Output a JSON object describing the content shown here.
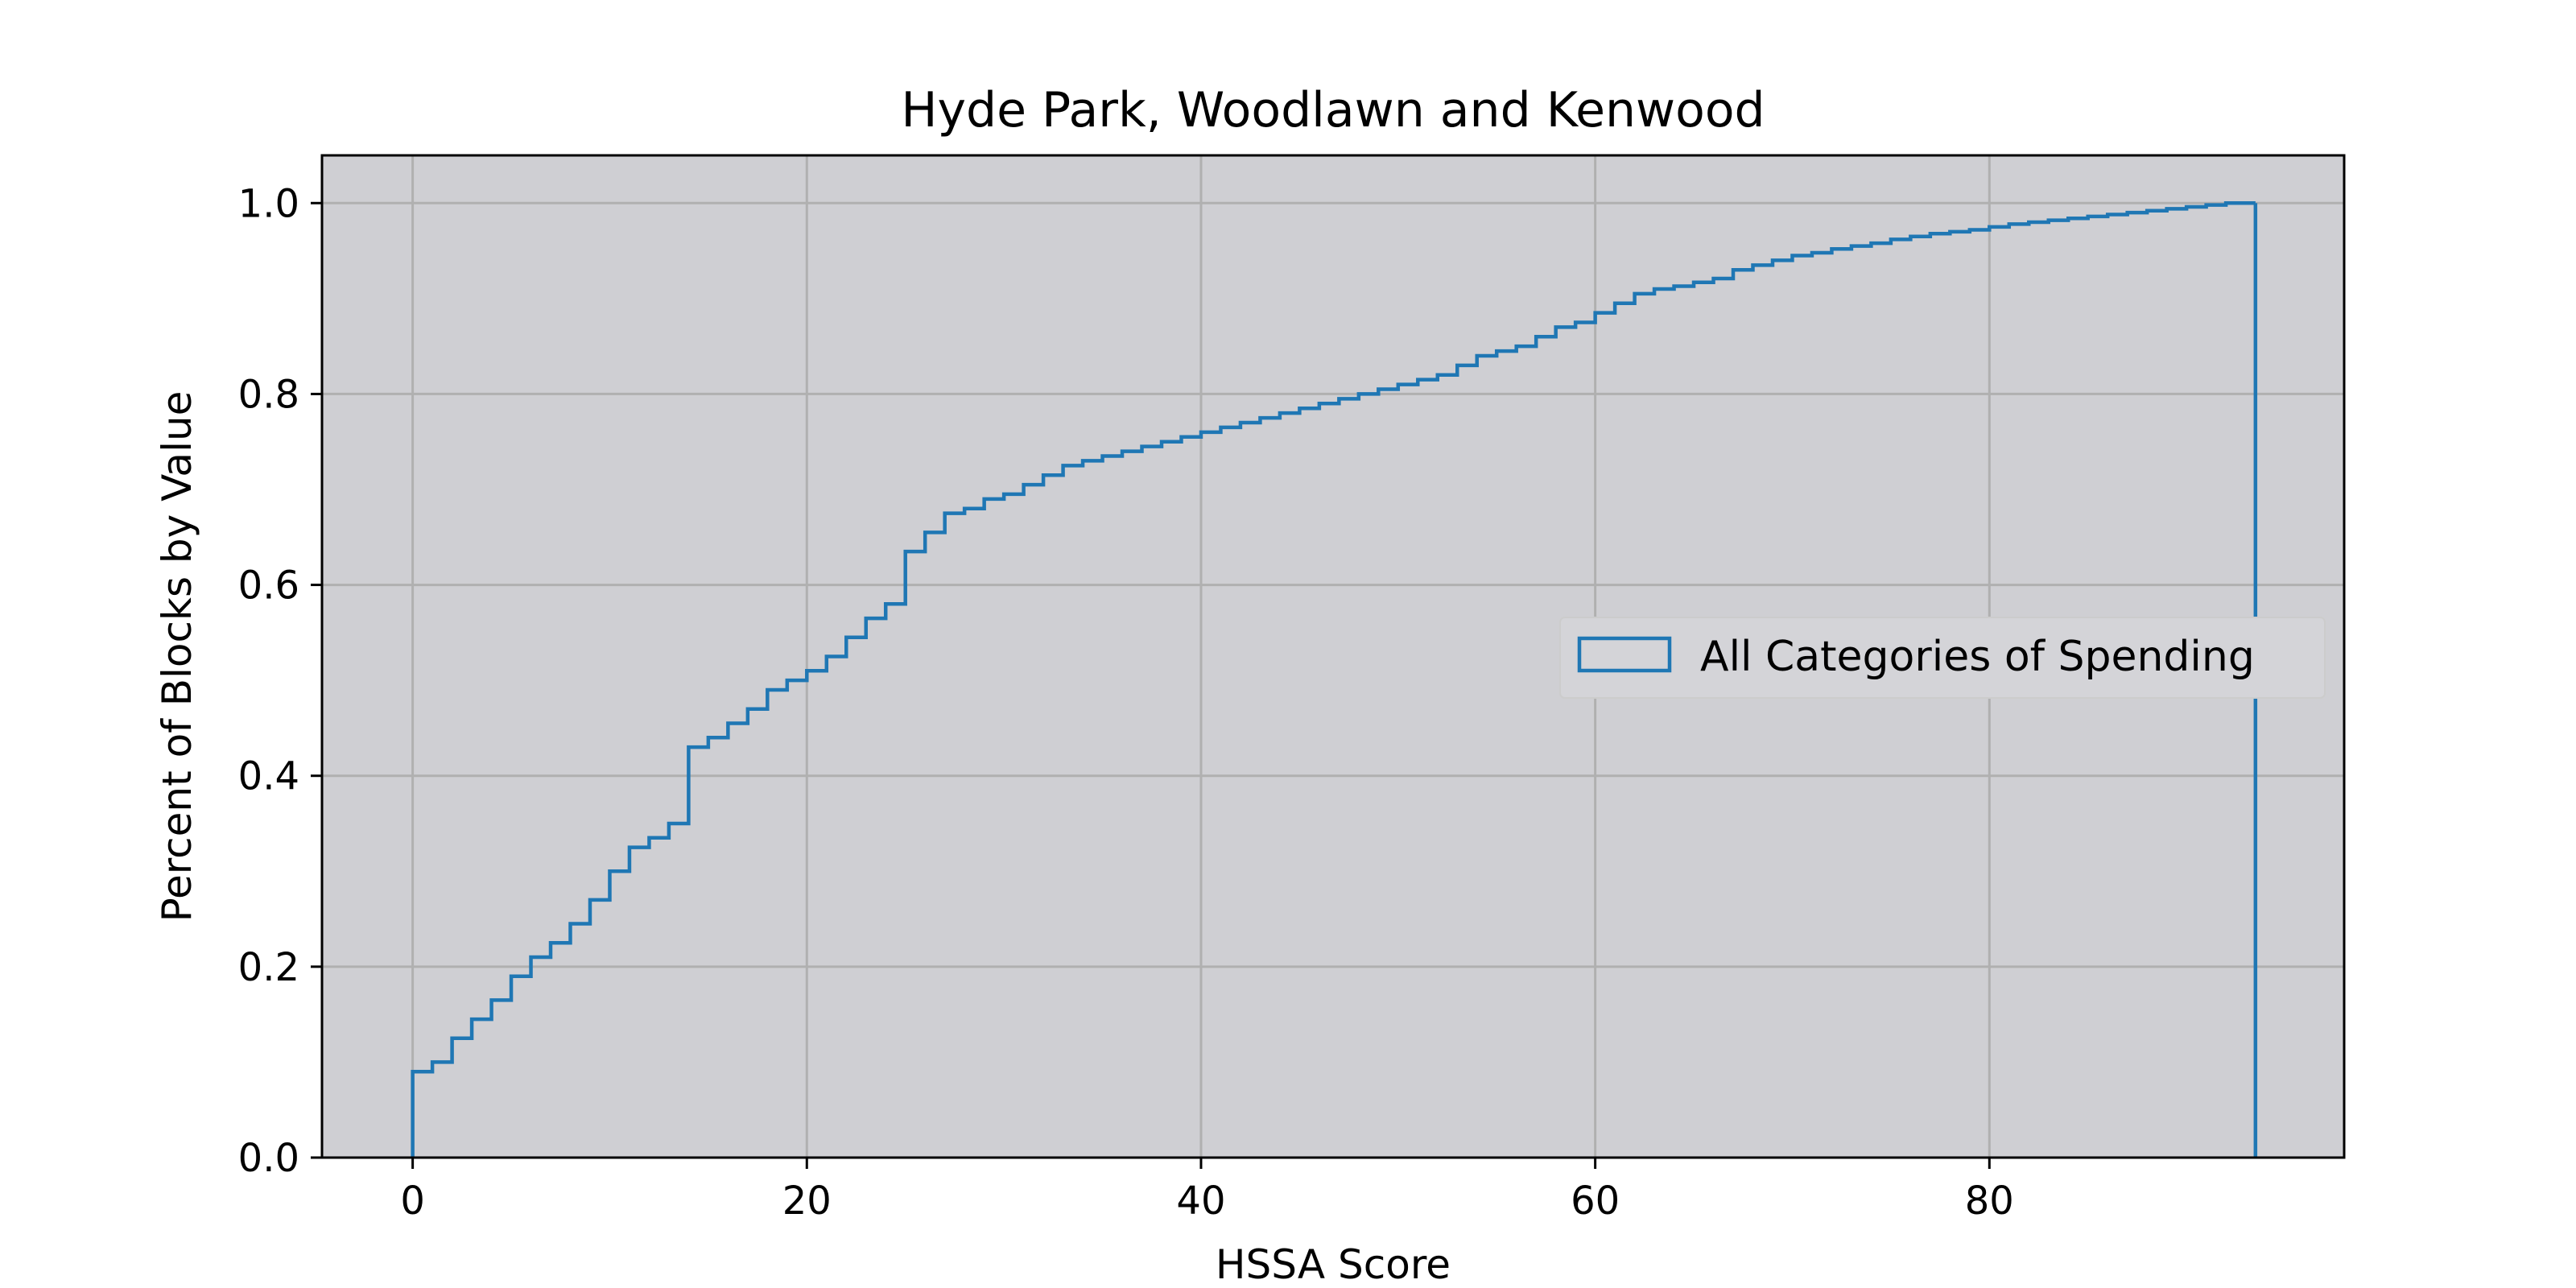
{
  "chart_data": {
    "type": "step",
    "title": "Hyde Park, Woodlawn and Kenwood",
    "xlabel": "HSSA Score",
    "ylabel": "Percent of Blocks by Value",
    "xlim": [
      -4.6,
      98.0
    ],
    "ylim": [
      0.0,
      1.05
    ],
    "xticks": [
      0,
      20,
      40,
      60,
      80
    ],
    "xtick_labels": [
      "0",
      "20",
      "40",
      "60",
      "80"
    ],
    "yticks": [
      0.0,
      0.2,
      0.4,
      0.6,
      0.8,
      1.0
    ],
    "ytick_labels": [
      "0.0",
      "0.2",
      "0.4",
      "0.6",
      "0.8",
      "1.0"
    ],
    "grid": true,
    "background": "#cfcfd3",
    "legend": {
      "placement": "center-right"
    },
    "series": [
      {
        "name": "All Categories of Spending",
        "color": "#1f77b4",
        "histtype": "step",
        "cumulative": true,
        "x_max": 93.5,
        "x": [
          0,
          1,
          2,
          3,
          4,
          5,
          6,
          7,
          8,
          9,
          10,
          11,
          12,
          13,
          14,
          15,
          16,
          17,
          18,
          19,
          20,
          21,
          22,
          23,
          24,
          25,
          26,
          27,
          28,
          29,
          30,
          31,
          32,
          33,
          34,
          35,
          36,
          37,
          38,
          39,
          40,
          41,
          42,
          43,
          44,
          45,
          46,
          47,
          48,
          49,
          50,
          51,
          52,
          53,
          54,
          55,
          56,
          57,
          58,
          59,
          60,
          61,
          62,
          63,
          64,
          65,
          66,
          67,
          68,
          69,
          70,
          71,
          72,
          73,
          74,
          75,
          76,
          77,
          78,
          79,
          80,
          81,
          82,
          83,
          84,
          85,
          86,
          87,
          88,
          89,
          90,
          91,
          92
        ],
        "y": [
          0.09,
          0.1,
          0.125,
          0.145,
          0.165,
          0.19,
          0.21,
          0.225,
          0.245,
          0.27,
          0.3,
          0.325,
          0.335,
          0.35,
          0.43,
          0.44,
          0.455,
          0.47,
          0.49,
          0.5,
          0.51,
          0.525,
          0.545,
          0.565,
          0.58,
          0.635,
          0.655,
          0.675,
          0.68,
          0.69,
          0.695,
          0.705,
          0.715,
          0.725,
          0.73,
          0.735,
          0.74,
          0.745,
          0.75,
          0.755,
          0.76,
          0.765,
          0.77,
          0.775,
          0.78,
          0.785,
          0.79,
          0.795,
          0.8,
          0.805,
          0.81,
          0.815,
          0.82,
          0.83,
          0.84,
          0.845,
          0.85,
          0.86,
          0.87,
          0.875,
          0.885,
          0.895,
          0.905,
          0.91,
          0.913,
          0.917,
          0.921,
          0.93,
          0.935,
          0.94,
          0.945,
          0.948,
          0.952,
          0.955,
          0.958,
          0.962,
          0.965,
          0.968,
          0.97,
          0.972,
          0.975,
          0.978,
          0.98,
          0.982,
          0.984,
          0.986,
          0.988,
          0.99,
          0.992,
          0.994,
          0.996,
          0.998,
          1.0
        ]
      }
    ]
  }
}
